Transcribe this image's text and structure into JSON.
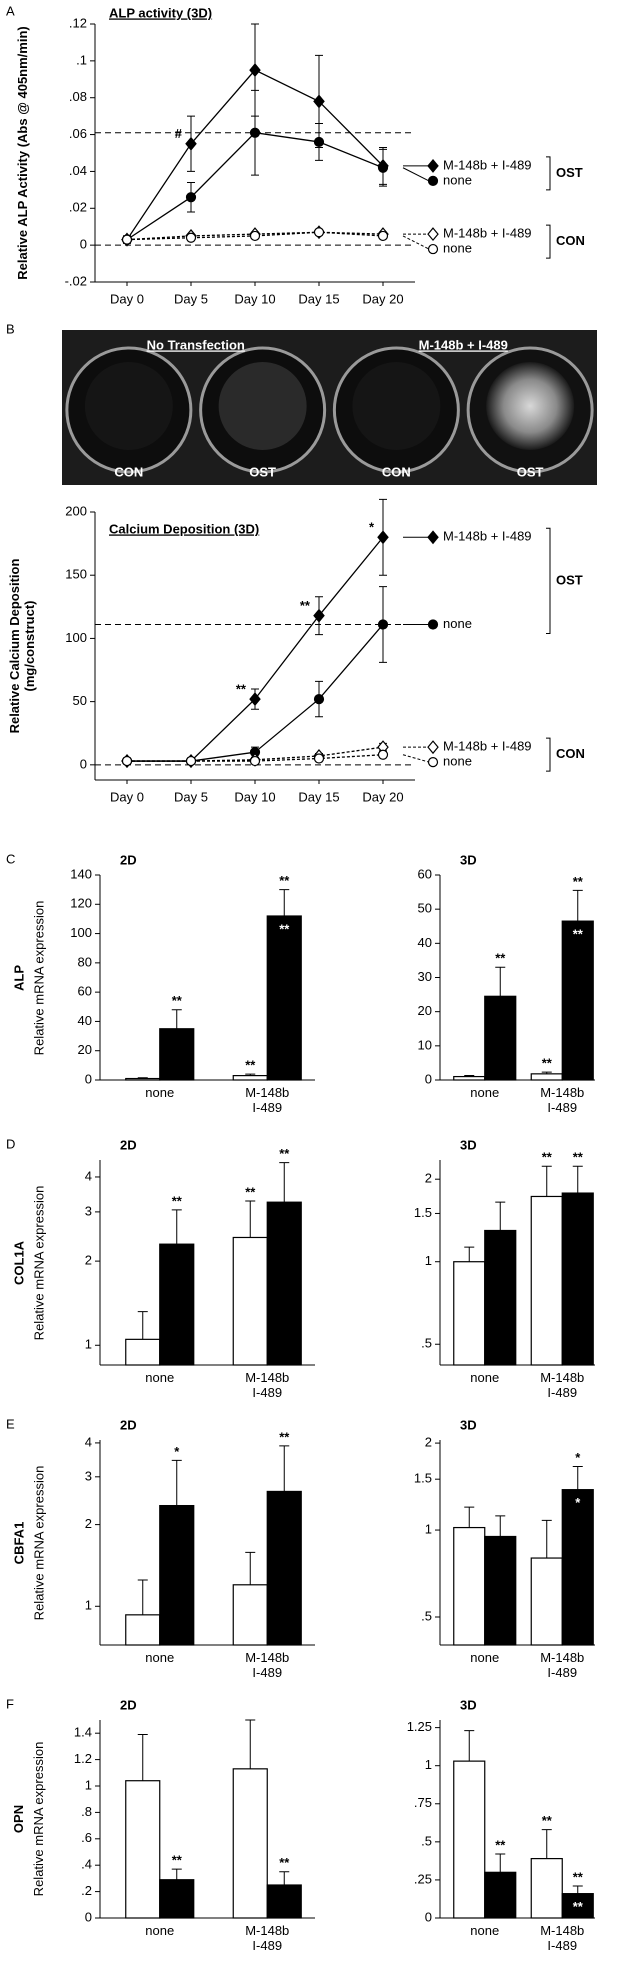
{
  "panel_labels": [
    "A",
    "B",
    "C",
    "D",
    "E",
    "F"
  ],
  "image": {
    "groups": [
      "No Transfection",
      "M-148b + I-489"
    ],
    "wells": [
      "CON",
      "OST",
      "CON",
      "OST"
    ]
  },
  "chart_data": [
    {
      "type": "line",
      "title": "ALP activity (3D)",
      "ylabel": "Relative ALP Activity (Abs @ 405nm/min)",
      "categories": [
        "Day 0",
        "Day 5",
        "Day 10",
        "Day 15",
        "Day 20"
      ],
      "ylim": [
        -0.02,
        0.12
      ],
      "yticks": [
        {
          "value": -0.02,
          "label": "-.02"
        },
        0,
        {
          "value": 0.02,
          "label": ".02"
        },
        {
          "value": 0.04,
          "label": ".04"
        },
        {
          "value": 0.06,
          "label": ".06"
        },
        {
          "value": 0.08,
          "label": ".08"
        },
        {
          "value": 0.1,
          "label": ".1"
        },
        {
          "value": 0.12,
          "label": ".12"
        }
      ],
      "reference_lines": [
        0.061,
        0
      ],
      "groups": [
        "OST",
        "CON"
      ],
      "series": [
        {
          "name": "M-148b + I-489",
          "group": "OST",
          "color": "#000000",
          "marker": "diamond",
          "marker_fill": "#000000",
          "dash": false,
          "values": [
            0.003,
            0.055,
            0.095,
            0.078,
            0.043
          ],
          "errors": [
            0.002,
            0.015,
            0.025,
            0.025,
            0.01
          ],
          "point_labels": [
            null,
            "#",
            null,
            null,
            null
          ]
        },
        {
          "name": "none",
          "group": "OST",
          "color": "#000000",
          "marker": "circle",
          "marker_fill": "#000000",
          "dash": false,
          "values": [
            0.003,
            0.026,
            0.061,
            0.056,
            0.042
          ],
          "errors": [
            0.002,
            0.008,
            0.023,
            0.01,
            0.01
          ]
        },
        {
          "name": "M-148b + I-489",
          "group": "CON",
          "color": "#000000",
          "marker": "diamond",
          "marker_fill": "#ffffff",
          "dash": true,
          "values": [
            0.003,
            0.005,
            0.006,
            0.007,
            0.006
          ],
          "errors": [
            0.001,
            0.001,
            0.001,
            0.001,
            0.001
          ]
        },
        {
          "name": "none",
          "group": "CON",
          "color": "#000000",
          "marker": "circle",
          "marker_fill": "#ffffff",
          "dash": true,
          "values": [
            0.003,
            0.004,
            0.005,
            0.007,
            0.005
          ],
          "errors": [
            0.001,
            0.001,
            0.001,
            0.001,
            0.001
          ]
        }
      ]
    },
    {
      "type": "line",
      "title": "Calcium Deposition (3D)",
      "ylabel": "Relative Calcium Deposition (mg/construct)",
      "categories": [
        "Day 0",
        "Day 5",
        "Day 10",
        "Day 15",
        "Day 20"
      ],
      "ylim": [
        -12,
        200
      ],
      "yticks": [
        0,
        50,
        100,
        150,
        200
      ],
      "reference_lines": [
        111,
        0
      ],
      "groups": [
        "OST",
        "CON"
      ],
      "series": [
        {
          "name": "M-148b + I-489",
          "group": "OST",
          "color": "#000000",
          "marker": "diamond",
          "marker_fill": "#000000",
          "dash": false,
          "values": [
            3,
            3,
            52,
            118,
            180
          ],
          "errors": [
            2,
            2,
            8,
            15,
            30
          ],
          "point_labels": [
            null,
            null,
            "**",
            "**",
            "*"
          ]
        },
        {
          "name": "none",
          "group": "OST",
          "color": "#000000",
          "marker": "circle",
          "marker_fill": "#000000",
          "dash": false,
          "values": [
            3,
            3,
            10,
            52,
            111
          ],
          "errors": [
            1,
            1,
            4,
            14,
            30
          ]
        },
        {
          "name": "M-148b + I-489",
          "group": "CON",
          "color": "#000000",
          "marker": "diamond",
          "marker_fill": "#ffffff",
          "dash": true,
          "values": [
            3,
            3,
            4,
            7,
            14
          ],
          "errors": [
            1,
            1,
            1,
            2,
            3
          ]
        },
        {
          "name": "none",
          "group": "CON",
          "color": "#000000",
          "marker": "circle",
          "marker_fill": "#ffffff",
          "dash": true,
          "values": [
            3,
            3,
            3,
            5,
            8
          ],
          "errors": [
            1,
            1,
            1,
            1,
            2
          ]
        }
      ]
    },
    {
      "type": "bar",
      "title": "2D",
      "ylabel": "ALP",
      "ylabel_sub": "Relative mRNA expression",
      "categories": [
        "none",
        "M-148b\nI-489"
      ],
      "ylim": [
        0,
        140
      ],
      "yticks": [
        0,
        20,
        40,
        60,
        80,
        100,
        120,
        140
      ],
      "series": [
        {
          "color": "#ffffff",
          "values": [
            1,
            3
          ],
          "errors": [
            0.5,
            1
          ],
          "labels_above": [
            null,
            "**"
          ]
        },
        {
          "color": "#000000",
          "values": [
            35,
            112
          ],
          "errors": [
            13,
            18
          ],
          "labels_above": [
            "**",
            "**"
          ],
          "labels_inside": [
            null,
            "**"
          ]
        }
      ]
    },
    {
      "type": "bar",
      "title": "3D",
      "categories": [
        "none",
        "M-148b\nI-489"
      ],
      "ylim": [
        0,
        60
      ],
      "yticks": [
        0,
        10,
        20,
        30,
        40,
        50,
        60
      ],
      "series": [
        {
          "color": "#ffffff",
          "values": [
            1,
            1.8
          ],
          "errors": [
            0.3,
            0.5
          ],
          "labels_above": [
            null,
            "**"
          ]
        },
        {
          "color": "#000000",
          "values": [
            24.5,
            46.5
          ],
          "errors": [
            8.5,
            9
          ],
          "labels_above": [
            "**",
            "**"
          ],
          "labels_inside": [
            null,
            "**"
          ]
        }
      ]
    },
    {
      "type": "bar",
      "title": "2D",
      "ylabel": "COL1A",
      "ylabel_sub": "Relative mRNA expression",
      "log": true,
      "categories": [
        "none",
        "M-148b\nI-489"
      ],
      "ylim": [
        0.85,
        4.6
      ],
      "yticks": [
        1,
        2,
        3,
        4
      ],
      "series": [
        {
          "color": "#ffffff",
          "values": [
            1.05,
            2.43
          ],
          "errors": [
            0.27,
            0.85
          ],
          "labels_above": [
            null,
            "**"
          ]
        },
        {
          "color": "#000000",
          "values": [
            2.3,
            3.25
          ],
          "errors": [
            0.75,
            1.25
          ],
          "labels_above": [
            "**",
            "**"
          ]
        }
      ]
    },
    {
      "type": "bar",
      "title": "3D",
      "log": true,
      "categories": [
        "none",
        "M-148b\nI-489"
      ],
      "ylim": [
        0.42,
        2.35
      ],
      "yticks": [
        {
          "value": 0.5,
          "label": ".5"
        },
        1,
        1.5,
        2
      ],
      "series": [
        {
          "color": "#ffffff",
          "values": [
            1,
            1.73
          ],
          "errors": [
            0.13,
            0.5
          ],
          "labels_above": [
            null,
            "**"
          ]
        },
        {
          "color": "#000000",
          "values": [
            1.3,
            1.78
          ],
          "errors": [
            0.35,
            0.45
          ],
          "labels_above": [
            null,
            "**"
          ]
        }
      ]
    },
    {
      "type": "bar",
      "title": "2D",
      "ylabel": "CBFA1",
      "ylabel_sub": "Relative mRNA expression",
      "log": true,
      "categories": [
        "none",
        "M-148b\nI-489"
      ],
      "ylim": [
        0.72,
        4.1
      ],
      "yticks": [
        1,
        2,
        3,
        4
      ],
      "series": [
        {
          "color": "#ffffff",
          "values": [
            0.93,
            1.2
          ],
          "errors": [
            0.32,
            0.38
          ]
        },
        {
          "color": "#000000",
          "values": [
            2.35,
            2.65
          ],
          "errors": [
            1.1,
            1.25
          ],
          "labels_above": [
            "*",
            "**"
          ]
        }
      ]
    },
    {
      "type": "bar",
      "title": "3D",
      "log": true,
      "categories": [
        "none",
        "M-148b\nI-489"
      ],
      "ylim": [
        0.4,
        2.05
      ],
      "yticks": [
        {
          "value": 0.5,
          "label": ".5"
        },
        1,
        1.5,
        2
      ],
      "series": [
        {
          "color": "#ffffff",
          "values": [
            1.02,
            0.8
          ],
          "errors": [
            0.18,
            0.28
          ]
        },
        {
          "color": "#000000",
          "values": [
            0.95,
            1.38
          ],
          "errors": [
            0.17,
            0.28
          ],
          "labels_above": [
            null,
            "*"
          ],
          "labels_inside": [
            null,
            "*"
          ]
        }
      ]
    },
    {
      "type": "bar",
      "title": "2D",
      "ylabel": "OPN",
      "ylabel_sub": "Relative mRNA expression",
      "categories": [
        "none",
        "M-148b\nI-489"
      ],
      "ylim": [
        0,
        1.5
      ],
      "yticks": [
        0,
        {
          "value": 0.2,
          "label": ".2"
        },
        {
          "value": 0.4,
          "label": ".4"
        },
        {
          "value": 0.6,
          "label": ".6"
        },
        {
          "value": 0.8,
          "label": ".8"
        },
        1,
        1.2,
        1.4
      ],
      "series": [
        {
          "color": "#ffffff",
          "values": [
            1.04,
            1.13
          ],
          "errors": [
            0.35,
            0.37
          ]
        },
        {
          "color": "#000000",
          "values": [
            0.29,
            0.25
          ],
          "errors": [
            0.08,
            0.1
          ],
          "labels_above": [
            "**",
            "**"
          ]
        }
      ]
    },
    {
      "type": "bar",
      "title": "3D",
      "categories": [
        "none",
        "M-148b\nI-489"
      ],
      "ylim": [
        0,
        1.3
      ],
      "yticks": [
        0,
        {
          "value": 0.25,
          "label": ".25"
        },
        {
          "value": 0.5,
          "label": ".5"
        },
        {
          "value": 0.75,
          "label": ".75"
        },
        1,
        1.25
      ],
      "series": [
        {
          "color": "#ffffff",
          "values": [
            1.03,
            0.39
          ],
          "errors": [
            0.2,
            0.19
          ],
          "labels_above": [
            null,
            "**"
          ]
        },
        {
          "color": "#000000",
          "values": [
            0.3,
            0.16
          ],
          "errors": [
            0.12,
            0.05
          ],
          "labels_above": [
            "**",
            "**"
          ],
          "labels_inside": [
            null,
            "**"
          ]
        }
      ]
    }
  ]
}
